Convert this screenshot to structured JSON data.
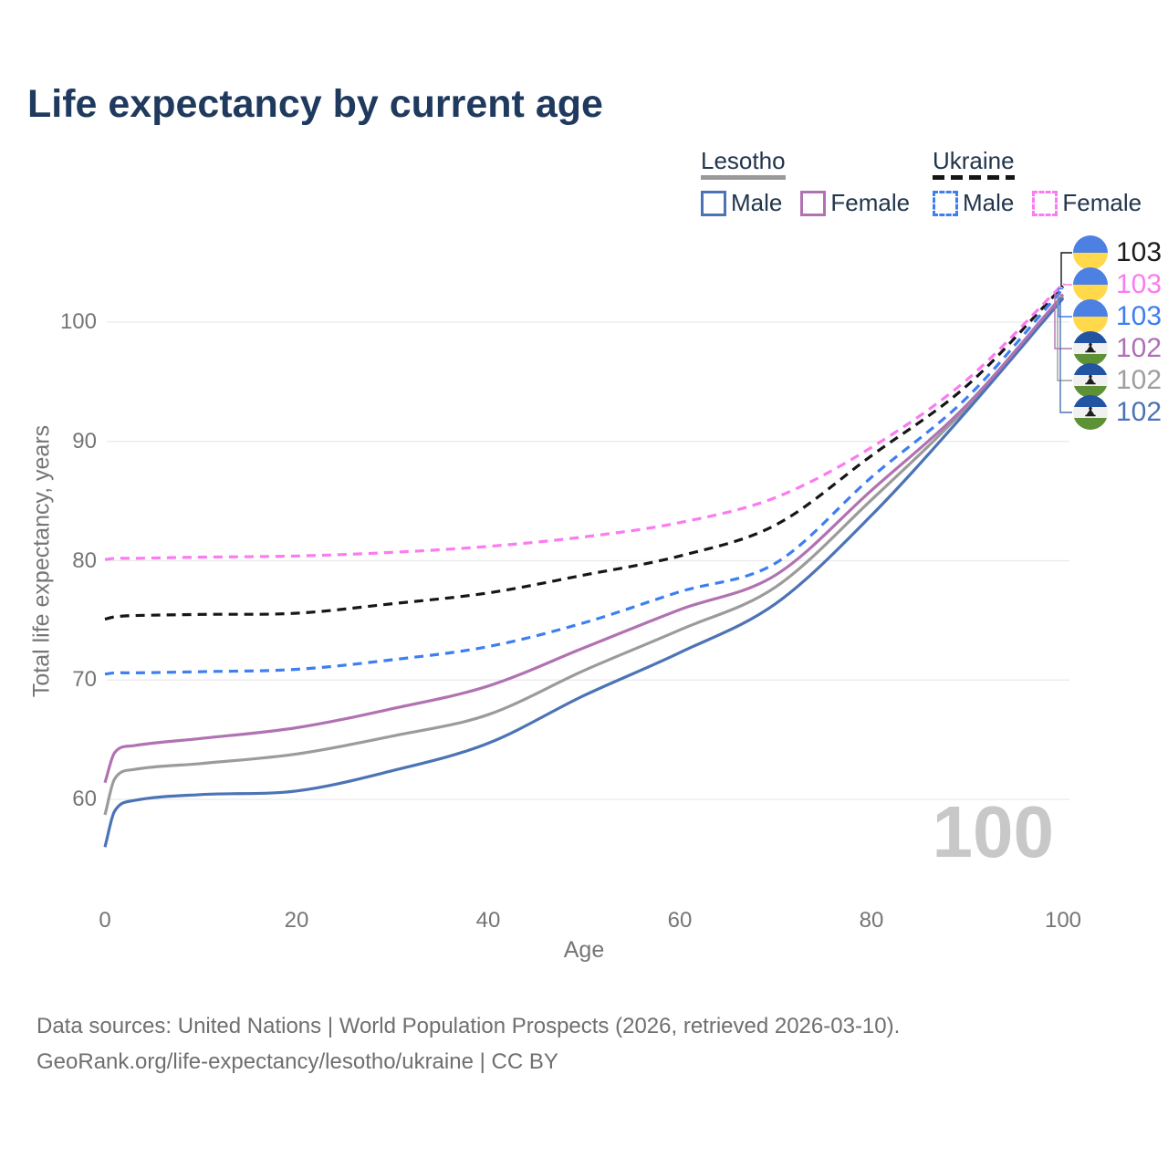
{
  "title": "Life expectancy by current age",
  "legend": {
    "groups": [
      {
        "name": "Lesotho",
        "style": "solid",
        "items": [
          {
            "label": "Male"
          },
          {
            "label": "Female"
          }
        ]
      },
      {
        "name": "Ukraine",
        "style": "dashed",
        "items": [
          {
            "label": "Male"
          },
          {
            "label": "Female"
          }
        ]
      }
    ]
  },
  "colors": {
    "lesotho_male": "#4b73b6",
    "lesotho_female": "#b172b2",
    "lesotho_both": "#9b9b9b",
    "ukraine_male": "#3d7ff0",
    "ukraine_female": "#fb7bf1",
    "ukraine_both": "#161616",
    "title_text": "#1f3a5e",
    "axis_text": "#757575",
    "grid": "#e9e9e9",
    "footer_text": "#6f6f6f",
    "watermark": "#c8c8c8",
    "flag_ukraine_blue": "#4c80e2",
    "flag_ukraine_yellow": "#ffd84b",
    "flag_lesotho_blue": "#2353a3",
    "flag_lesotho_white": "#f1f1f1",
    "flag_lesotho_green": "#5d9136"
  },
  "chart_data": {
    "type": "line",
    "title": "Life expectancy by current age",
    "xlabel": "Age",
    "ylabel": "Total life expectancy, years",
    "xlim": [
      0,
      100
    ],
    "ylim": [
      55,
      105
    ],
    "x_ticks": [
      0,
      20,
      40,
      60,
      80,
      100
    ],
    "y_ticks": [
      60,
      70,
      80,
      90,
      100
    ],
    "grid": "horizontal",
    "legend_position": "top-right",
    "x": [
      0,
      1,
      3,
      10,
      20,
      30,
      40,
      50,
      60,
      70,
      80,
      90,
      100
    ],
    "series": [
      {
        "name": "Ukraine Female",
        "country": "Ukraine",
        "sex": "Female",
        "style": "dashed",
        "color": "#fb7bf1",
        "values": [
          80.1,
          80.2,
          80.2,
          80.3,
          80.4,
          80.7,
          81.2,
          82.0,
          83.2,
          85.3,
          89.5,
          95.2,
          103.2
        ]
      },
      {
        "name": "Ukraine Both sexes",
        "country": "Ukraine",
        "sex": "Both",
        "style": "dashed",
        "color": "#161616",
        "values": [
          75.1,
          75.3,
          75.4,
          75.5,
          75.6,
          76.4,
          77.3,
          78.8,
          80.4,
          83.0,
          88.8,
          94.7,
          103.0
        ]
      },
      {
        "name": "Ukraine Male",
        "country": "Ukraine",
        "sex": "Male",
        "style": "dashed",
        "color": "#3d7ff0",
        "values": [
          70.5,
          70.6,
          70.6,
          70.7,
          70.9,
          71.7,
          72.8,
          74.8,
          77.4,
          79.8,
          87.0,
          93.7,
          102.8
        ]
      },
      {
        "name": "Lesotho Female",
        "country": "Lesotho",
        "sex": "Female",
        "style": "solid",
        "color": "#b172b2",
        "values": [
          61.4,
          63.9,
          64.5,
          65.1,
          66.0,
          67.6,
          69.5,
          72.7,
          75.9,
          78.8,
          85.9,
          93.1,
          102.3
        ]
      },
      {
        "name": "Lesotho Both sexes",
        "country": "Lesotho",
        "sex": "Both",
        "style": "solid",
        "color": "#9b9b9b",
        "values": [
          58.7,
          61.7,
          62.5,
          63.0,
          63.8,
          65.3,
          67.1,
          70.8,
          74.2,
          77.8,
          85.1,
          92.9,
          102.1
        ]
      },
      {
        "name": "Lesotho Male",
        "country": "Lesotho",
        "sex": "Male",
        "style": "solid",
        "color": "#4b73b6",
        "values": [
          56.0,
          59.0,
          59.9,
          60.4,
          60.7,
          62.4,
          64.7,
          68.7,
          72.3,
          76.4,
          83.8,
          92.6,
          102.0
        ]
      }
    ]
  },
  "end_labels": [
    {
      "value": "103",
      "flag": "ukraine",
      "text_color": "#1c1c1c",
      "series": "Ukraine Both sexes"
    },
    {
      "value": "103",
      "flag": "ukraine",
      "text_color": "#fb7bf1",
      "series": "Ukraine Female"
    },
    {
      "value": "103",
      "flag": "ukraine",
      "text_color": "#3d7ff0",
      "series": "Ukraine Male"
    },
    {
      "value": "102",
      "flag": "lesotho",
      "text_color": "#ae70b4",
      "series": "Lesotho Female"
    },
    {
      "value": "102",
      "flag": "lesotho",
      "text_color": "#9e9e9e",
      "series": "Lesotho Both sexes"
    },
    {
      "value": "102",
      "flag": "lesotho",
      "text_color": "#4b73b6",
      "series": "Lesotho Male"
    }
  ],
  "watermark": "100",
  "footer": {
    "line1": "Data sources: United Nations | World Population Prospects (2026, retrieved 2026-03-10).",
    "line2": "GeoRank.org/life-expectancy/lesotho/ukraine | CC BY"
  }
}
